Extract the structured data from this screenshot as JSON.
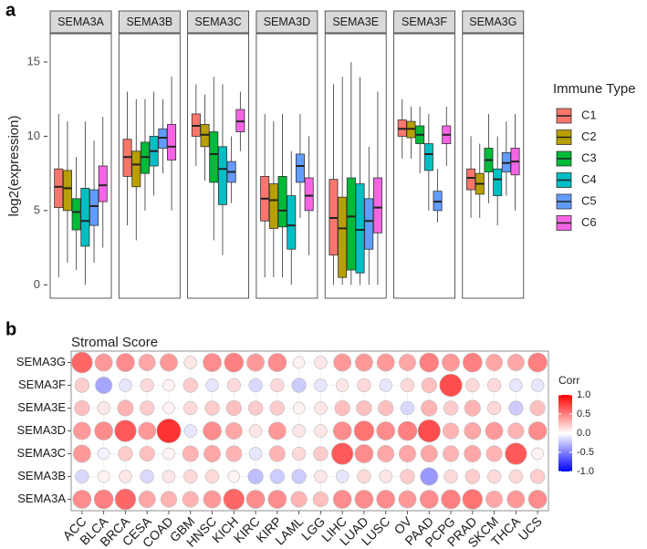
{
  "chart_data": [
    {
      "type": "box",
      "panel_label": "a",
      "ylabel": "log2(expression)",
      "categories": [
        "SEMA3A",
        "SEMA3B",
        "SEMA3C",
        "SEMA3D",
        "SEMA3E",
        "SEMA3F",
        "SEMA3G"
      ],
      "ylim": [
        -0.9,
        16.9
      ],
      "yticks": [
        0,
        5,
        10,
        15
      ],
      "grid": false,
      "legend_title": "Immune Type",
      "series": [
        {
          "name": "C1",
          "color": "#F8766D",
          "values": [
            {
              "min": 0.5,
              "q1": 5.2,
              "median": 6.6,
              "q3": 7.8,
              "max": 11.5
            },
            {
              "min": 4,
              "q1": 7.3,
              "median": 8.6,
              "q3": 9.8,
              "max": 13
            },
            {
              "min": 8,
              "q1": 10.0,
              "median": 10.7,
              "q3": 11.5,
              "max": 13.5
            },
            {
              "min": 0.5,
              "q1": 4.3,
              "median": 5.8,
              "q3": 7.3,
              "max": 11.5
            },
            {
              "min": 0,
              "q1": 2.0,
              "median": 4.5,
              "q3": 7.1,
              "max": 13.5
            },
            {
              "min": 8.5,
              "q1": 10.0,
              "median": 10.5,
              "q3": 11.1,
              "max": 12.5
            },
            {
              "min": 4.5,
              "q1": 6.4,
              "median": 7.2,
              "q3": 7.8,
              "max": 10
            }
          ]
        },
        {
          "name": "C2",
          "color": "#B79F00",
          "values": [
            {
              "min": 1.5,
              "q1": 5.0,
              "median": 6.5,
              "q3": 7.7,
              "max": 11
            },
            {
              "min": 3,
              "q1": 6.6,
              "median": 8.1,
              "q3": 9.0,
              "max": 12.5
            },
            {
              "min": 7,
              "q1": 9.3,
              "median": 10.1,
              "q3": 10.8,
              "max": 12.8
            },
            {
              "min": 0.5,
              "q1": 3.8,
              "median": 5.7,
              "q3": 6.8,
              "max": 11
            },
            {
              "min": 0,
              "q1": 0.5,
              "median": 3.8,
              "q3": 5.9,
              "max": 14
            },
            {
              "min": 8.5,
              "q1": 9.9,
              "median": 10.5,
              "q3": 11.0,
              "max": 12
            },
            {
              "min": 4.5,
              "q1": 6.1,
              "median": 6.8,
              "q3": 7.5,
              "max": 9.5
            }
          ]
        },
        {
          "name": "C3",
          "color": "#00BA38",
          "values": [
            {
              "min": 1,
              "q1": 3.7,
              "median": 4.9,
              "q3": 5.8,
              "max": 8.6
            },
            {
              "min": 5,
              "q1": 7.5,
              "median": 8.6,
              "q3": 9.6,
              "max": 12.5
            },
            {
              "min": 3,
              "q1": 6.9,
              "median": 8.8,
              "q3": 10.3,
              "max": 14
            },
            {
              "min": 0.5,
              "q1": 3.9,
              "median": 5.0,
              "q3": 7.3,
              "max": 11.5
            },
            {
              "min": 0,
              "q1": 1.0,
              "median": 4.6,
              "q3": 7.2,
              "max": 15
            },
            {
              "min": 7.5,
              "q1": 9.5,
              "median": 10.1,
              "q3": 10.7,
              "max": 12
            },
            {
              "min": 5.5,
              "q1": 7.6,
              "median": 8.4,
              "q3": 9.2,
              "max": 11.5
            }
          ]
        },
        {
          "name": "C4",
          "color": "#00BFC4",
          "values": [
            {
              "min": 0,
              "q1": 2.6,
              "median": 4.3,
              "q3": 6.5,
              "max": 11
            },
            {
              "min": 6,
              "q1": 8.0,
              "median": 9.0,
              "q3": 10.0,
              "max": 13
            },
            {
              "min": 2,
              "q1": 5.4,
              "median": 7.8,
              "q3": 9.3,
              "max": 13.5
            },
            {
              "min": 0,
              "q1": 2.4,
              "median": 4.0,
              "q3": 6.0,
              "max": 9
            },
            {
              "min": 0,
              "q1": 0.8,
              "median": 3.7,
              "q3": 6.8,
              "max": 14
            },
            {
              "min": 5,
              "q1": 7.7,
              "median": 8.8,
              "q3": 9.5,
              "max": 11.5
            },
            {
              "min": 4,
              "q1": 6.0,
              "median": 7.1,
              "q3": 7.8,
              "max": 10
            }
          ]
        },
        {
          "name": "C5",
          "color": "#619CFF",
          "values": [
            {
              "min": 1.5,
              "q1": 4.0,
              "median": 5.3,
              "q3": 6.4,
              "max": 9.7
            },
            {
              "min": 7.5,
              "q1": 9.2,
              "median": 9.9,
              "q3": 10.5,
              "max": 12.5
            },
            {
              "min": 5.5,
              "q1": 6.9,
              "median": 7.6,
              "q3": 8.3,
              "max": 10
            },
            {
              "min": 4.5,
              "q1": 6.9,
              "median": 8.0,
              "q3": 8.8,
              "max": 11.5
            },
            {
              "min": 0,
              "q1": 2.4,
              "median": 4.3,
              "q3": 5.8,
              "max": 9.3
            },
            {
              "min": 4.2,
              "q1": 5.0,
              "median": 5.6,
              "q3": 6.3,
              "max": 7.8
            },
            {
              "min": 6,
              "q1": 7.6,
              "median": 8.2,
              "q3": 8.9,
              "max": 11
            }
          ]
        },
        {
          "name": "C6",
          "color": "#F564E3",
          "values": [
            {
              "min": 2.5,
              "q1": 5.6,
              "median": 6.7,
              "q3": 8.0,
              "max": 11.3
            },
            {
              "min": 5,
              "q1": 8.4,
              "median": 9.3,
              "q3": 10.8,
              "max": 14
            },
            {
              "min": 9,
              "q1": 10.3,
              "median": 11.0,
              "q3": 11.8,
              "max": 13
            },
            {
              "min": 2,
              "q1": 5.0,
              "median": 6.0,
              "q3": 7.2,
              "max": 10
            },
            {
              "min": 0,
              "q1": 3.5,
              "median": 5.2,
              "q3": 7.2,
              "max": 13
            },
            {
              "min": 8,
              "q1": 9.5,
              "median": 10.1,
              "q3": 10.7,
              "max": 12
            },
            {
              "min": 5,
              "q1": 7.4,
              "median": 8.3,
              "q3": 9.2,
              "max": 11.5
            }
          ]
        }
      ]
    },
    {
      "type": "dot",
      "panel_label": "b",
      "title": "Stromal Score",
      "categories": [
        "ACC",
        "BLCA",
        "BRCA",
        "CESA",
        "COAD",
        "GBM",
        "HNSC",
        "KICH",
        "KIRC",
        "KIRP",
        "LAML",
        "LGG",
        "LIHC",
        "LUAD",
        "LUSC",
        "OV",
        "PAAD",
        "PCPG",
        "PRAD",
        "SKCM",
        "THCA",
        "UCS"
      ],
      "colorbar_title": "Corr",
      "clim": [
        -1,
        1
      ],
      "cticks": [
        {
          "value": 1,
          "label": "1.0"
        },
        0.5,
        {
          "value": 0,
          "label": "0.0"
        },
        -0.5,
        {
          "value": -1,
          "label": "-1.0"
        }
      ],
      "colors": {
        "low": "#0000FF",
        "mid": "#FFFFFF",
        "high": "#FF0000"
      },
      "series": [
        {
          "name": "SEMA3G",
          "values": [
            0.6,
            0.4,
            0.45,
            0.35,
            0.4,
            0.1,
            0.45,
            0.5,
            0.4,
            0.45,
            0.05,
            0.1,
            0.4,
            0.4,
            0.4,
            0.35,
            0.5,
            0.4,
            0.5,
            0.35,
            0.35,
            0.5
          ]
        },
        {
          "name": "SEMA3F",
          "values": [
            0.2,
            -0.35,
            -0.1,
            0.15,
            0.05,
            0.2,
            -0.1,
            0.15,
            -0.15,
            0.15,
            -0.2,
            -0.1,
            0.1,
            0.15,
            -0.1,
            0.15,
            0.25,
            0.7,
            0.15,
            0.15,
            -0.1,
            -0.1
          ]
        },
        {
          "name": "SEMA3E",
          "values": [
            0.25,
            0.1,
            0.3,
            0.2,
            0.05,
            0.15,
            0.2,
            0.25,
            0.2,
            0.2,
            0.05,
            0.1,
            0.25,
            0.25,
            0.25,
            -0.15,
            0.3,
            0.2,
            0.3,
            0.15,
            -0.2,
            0.25
          ]
        },
        {
          "name": "SEMA3D",
          "values": [
            0.4,
            0.45,
            0.65,
            0.4,
            0.8,
            -0.1,
            0.45,
            0.35,
            0.1,
            0.4,
            0.1,
            0.1,
            0.45,
            0.55,
            0.45,
            0.5,
            0.7,
            0.3,
            0.35,
            0.4,
            0.3,
            0.45
          ]
        },
        {
          "name": "SEMA3C",
          "values": [
            0.4,
            -0.05,
            0.2,
            0.25,
            0.05,
            0.3,
            0.35,
            0.3,
            -0.1,
            0.3,
            0.15,
            0.2,
            0.65,
            0.45,
            0.35,
            0.35,
            0.35,
            0.3,
            0.35,
            0.3,
            0.65,
            0.05
          ]
        },
        {
          "name": "SEMA3B",
          "values": [
            -0.15,
            0.05,
            0.1,
            -0.15,
            0.1,
            0.15,
            0.15,
            0.05,
            -0.25,
            -0.2,
            -0.2,
            0.1,
            -0.1,
            0.15,
            0.1,
            0.2,
            -0.4,
            0.15,
            0.2,
            0.15,
            0.15,
            0.2
          ]
        },
        {
          "name": "SEMA3A",
          "values": [
            0.45,
            0.5,
            0.6,
            0.35,
            0.3,
            0.3,
            0.4,
            0.6,
            0.45,
            0.45,
            0.3,
            0.25,
            0.45,
            0.45,
            0.45,
            0.4,
            0.45,
            0.5,
            0.55,
            0.35,
            0.4,
            0.45
          ]
        }
      ]
    }
  ]
}
